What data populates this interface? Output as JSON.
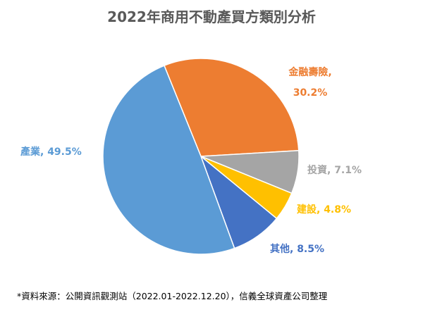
{
  "chart_data": {
    "type": "pie",
    "title": "2022年商用不動產買方類別分析",
    "slices": [
      {
        "category": "金融壽險",
        "value": 30.2,
        "value_label": "30.2%",
        "color": "#ED7D31",
        "label_style": "two-line"
      },
      {
        "category": "投資",
        "value": 7.1,
        "value_label": "7.1%",
        "color": "#A5A5A5",
        "label_style": "inline"
      },
      {
        "category": "建設",
        "value": 4.8,
        "value_label": "4.8%",
        "color": "#FFC000",
        "label_style": "inline"
      },
      {
        "category": "其他",
        "value": 8.5,
        "value_label": "8.5%",
        "color": "#4472C4",
        "label_style": "inline"
      },
      {
        "category": "產業",
        "value": 49.5,
        "value_label": "49.5%",
        "color": "#5B9BD5",
        "label_style": "inline"
      }
    ],
    "start_angle_deg": -22,
    "direction": "clockwise"
  },
  "source_note": "*資料來源：公開資訊觀測站（2022.01-2022.12.20），信義全球資產公司整理"
}
